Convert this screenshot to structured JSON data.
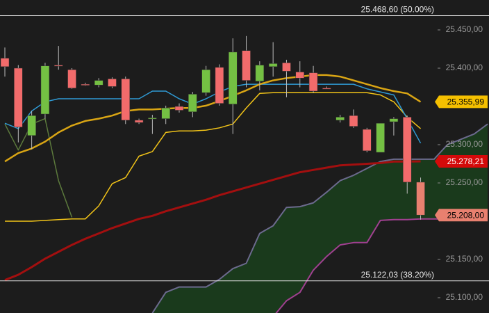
{
  "chart_data": {
    "type": "candlestick",
    "background": "#1c1c1c",
    "x": [
      0,
      1,
      2,
      3,
      4,
      5,
      6,
      7,
      8,
      9,
      10,
      11,
      12,
      13,
      14,
      15,
      16,
      17,
      18,
      19,
      20,
      21,
      22,
      23,
      24,
      25,
      26,
      27,
      28,
      29,
      30,
      31,
      32,
      33,
      34,
      35,
      36
    ],
    "xlim": [
      -0.363,
      36.1
    ],
    "ylim": [
      25080,
      25489.1
    ],
    "yticks": [
      {
        "value": 25100,
        "label": "25.100,00"
      },
      {
        "value": 25150,
        "label": "25.150,00"
      },
      {
        "value": 25250,
        "label": "25.250,00"
      },
      {
        "value": 25300,
        "label": "25.300,00"
      },
      {
        "value": 25400,
        "label": "25.400,00"
      },
      {
        "value": 25450,
        "label": "25.450,00"
      }
    ],
    "grid": false,
    "candles": {
      "up_color": "#74c043",
      "down_color": "#f26b6b",
      "last_color": "#e8806f",
      "open": [
        25413,
        25400,
        25312,
        25340,
        25404,
        25398,
        25379,
        25378,
        25386,
        25386,
        25332,
        25334,
        25334,
        25350,
        25343,
        25368,
        25401,
        25353,
        25423,
        25383,
        25402,
        25407,
        25395,
        25394,
        25374,
        25332,
        25338,
        25320,
        25290,
        25330,
        25336,
        25251,
        null,
        null,
        null,
        null,
        null
      ],
      "high": [
        25427,
        25404,
        25344,
        25407,
        25429,
        25400,
        25381,
        25387,
        25388,
        25389,
        25334,
        25339,
        25351,
        25354,
        25369,
        25403,
        25405,
        25439,
        25442,
        25409,
        25434,
        25411,
        25409,
        25403,
        25376,
        25339,
        25346,
        25322,
        25328,
        25336,
        25338,
        25257,
        null,
        null,
        null,
        null,
        null
      ],
      "low": [
        25389,
        25303,
        25294,
        25334,
        25398,
        25373,
        25377,
        25375,
        25374,
        25327,
        25327,
        25314,
        25327,
        25342,
        25336,
        25364,
        25351,
        25314,
        25375,
        25371,
        25389,
        25362,
        25375,
        25368,
        25373,
        25329,
        25322,
        25290,
        25290,
        25312,
        25236,
        25202,
        null,
        null,
        null,
        null,
        null
      ],
      "close": [
        25402,
        25323,
        25338,
        25403,
        25403,
        25374,
        25378,
        25384,
        25376,
        25332,
        25329,
        25335,
        25348,
        25345,
        25366,
        25398,
        25354,
        25421,
        25384,
        25404,
        25406,
        25396,
        25387,
        25370,
        25373,
        25336,
        25324,
        25292,
        25328,
        25334,
        25251,
        25208,
        null,
        null,
        null,
        null,
        null
      ],
      "tag": "25.208,00"
    },
    "cloud": {
      "color": "#1a3a1c",
      "upper_color": "#6c6a8e",
      "lower_color": "#a04090",
      "upper": [
        null,
        null,
        null,
        null,
        null,
        null,
        null,
        null,
        null,
        null,
        null,
        25080,
        25107,
        25114,
        25114,
        25114,
        25124,
        25138,
        25145,
        25184,
        25194,
        25218,
        25219,
        25224,
        25238,
        25253,
        25260,
        25269,
        25278,
        25281,
        25281,
        25281,
        25281,
        25300,
        25307,
        25314,
        25327
      ],
      "lower": [
        null,
        null,
        null,
        null,
        null,
        null,
        null,
        null,
        null,
        null,
        null,
        null,
        null,
        null,
        null,
        null,
        null,
        null,
        null,
        null,
        25075,
        25096,
        25107,
        25136,
        25154,
        25169,
        25172,
        25172,
        25201,
        25202,
        25202,
        25203,
        25203,
        25203,
        25203,
        25203,
        25203
      ]
    },
    "series": [
      {
        "color": "#a30f0f",
        "width": 3,
        "tag": "25.278,21",
        "tag_text_color": "#ffffff",
        "values": [
          25123,
          25130,
          25140,
          25151,
          25160,
          25169,
          25177,
          25184,
          25191,
          25197,
          25203,
          25207,
          25213,
          25218,
          25223,
          25228,
          25234,
          25239,
          25244,
          25249,
          25254,
          25259,
          25264,
          25267,
          25270,
          25273,
          25274,
          25275,
          25276,
          25278,
          25278,
          25278.21,
          null,
          null,
          null,
          null,
          null
        ]
      },
      {
        "color": "#5c7a3c",
        "width": 1.5,
        "values": [
          25327,
          25293,
          25327,
          25334,
          25253,
          25205,
          null,
          null,
          null,
          null,
          null,
          null,
          null,
          null,
          null,
          null,
          null,
          null,
          null,
          null,
          null,
          null,
          null,
          null,
          null,
          null,
          null,
          null,
          null,
          null,
          null,
          null,
          null,
          null,
          null,
          null,
          null
        ]
      },
      {
        "color": "#f2c418",
        "width": 1.5,
        "values": [
          25200,
          25200,
          25200,
          25201,
          25202,
          25203,
          25203,
          25220,
          25249,
          25257,
          25285,
          25291,
          25316,
          25318,
          25318,
          25319,
          25322,
          25327,
          25348,
          25367,
          25368,
          25368,
          25368,
          25368,
          25368,
          25368,
          25368,
          25368,
          25365,
          25356,
          25336,
          25321,
          null,
          null,
          null,
          null,
          null
        ]
      },
      {
        "color": "#2f9ad4",
        "width": 1.5,
        "values": [
          25328,
          25321,
          25344,
          25356,
          25360,
          25360,
          25360,
          25360,
          25360,
          25360,
          25360,
          25370,
          25370,
          25360,
          25353,
          25360,
          25369,
          25376,
          25379,
          25379,
          25379,
          25379,
          25379,
          25379,
          25379,
          25379,
          25379,
          25373,
          25369,
          25365,
          25334,
          25302,
          null,
          null,
          null,
          null,
          null
        ]
      },
      {
        "color": "#d9a514",
        "width": 2.5,
        "tag": "25.355,99",
        "tag_text_color": "#000000",
        "values": [
          25278,
          25289,
          25295,
          25304,
          25316,
          25325,
          25331,
          25334,
          25338,
          25344,
          25346,
          25346,
          25347,
          25348,
          25348,
          25351,
          25357,
          25364,
          25371,
          25379,
          25384,
          25387,
          25389,
          25391,
          25391,
          25389,
          25384,
          25379,
          25374,
          25370,
          25367,
          25355.99,
          null,
          null,
          null,
          null,
          null
        ]
      }
    ],
    "levels": [
      {
        "value": 25468.6,
        "label": "25.468,60 (50.00%)"
      },
      {
        "value": 25122.03,
        "label": "25.122,03 (38.20%)"
      }
    ]
  }
}
